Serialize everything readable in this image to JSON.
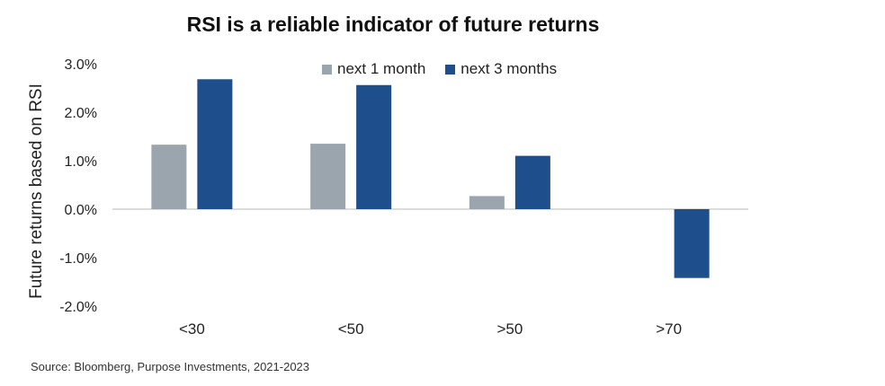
{
  "chart_data": {
    "type": "bar",
    "title": "RSI is a reliable indicator of future returns",
    "ylabel": "Future returns based on RSI",
    "xlabel": "",
    "categories": [
      "<30",
      "<50",
      ">50",
      ">70"
    ],
    "series": [
      {
        "name": "next 1 month",
        "color": "#9aa5ae",
        "values": [
          1.33,
          1.35,
          0.27,
          0.0
        ]
      },
      {
        "name": "next 3 months",
        "color": "#1f4e8c",
        "values": [
          2.68,
          2.56,
          1.1,
          -1.42
        ]
      }
    ],
    "ylim": [
      -2.0,
      3.0
    ],
    "yticks": [
      "3.0%",
      "2.0%",
      "1.0%",
      "0.0%",
      "-1.0%",
      "-2.0%"
    ],
    "ytick_values": [
      3.0,
      2.0,
      1.0,
      0.0,
      -1.0,
      -2.0
    ],
    "grid": false,
    "legend_position": "top"
  },
  "source": "Source: Bloomberg, Purpose Investments, 2021-2023"
}
